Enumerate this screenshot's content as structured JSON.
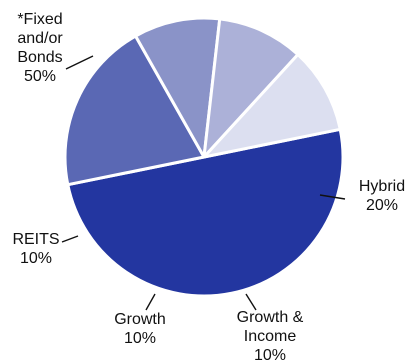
{
  "chart_data": {
    "type": "pie",
    "slices": [
      {
        "label_lines": [
          "*Fixed",
          "and/or",
          "Bonds"
        ],
        "value": 50,
        "value_text": "50%",
        "color": "#2336a0"
      },
      {
        "label_lines": [
          "Hybrid"
        ],
        "value": 20,
        "value_text": "20%",
        "color": "#5a68b4"
      },
      {
        "label_lines": [
          "Growth &",
          "Income"
        ],
        "value": 10,
        "value_text": "10%",
        "color": "#8a93c8"
      },
      {
        "label_lines": [
          "Growth"
        ],
        "value": 10,
        "value_text": "10%",
        "color": "#acb1d8"
      },
      {
        "label_lines": [
          "REITS"
        ],
        "value": 10,
        "value_text": "10%",
        "color": "#dcdff0"
      }
    ]
  }
}
